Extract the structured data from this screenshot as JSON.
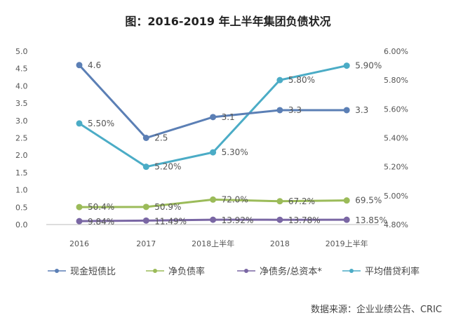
{
  "chart_data": {
    "type": "line",
    "title": "图：2016-2019 年上半年集团负债状况",
    "categories": [
      "2016",
      "2017",
      "2018上半年",
      "2018",
      "2019上半年"
    ],
    "left_axis": {
      "range": [
        0,
        5
      ],
      "ticks": [
        "0.0",
        "0.5",
        "1.0",
        "1.5",
        "2.0",
        "2.5",
        "3.0",
        "3.5",
        "4.0",
        "4.5",
        "5.0"
      ]
    },
    "right_axis": {
      "range": [
        4.8,
        6.0
      ],
      "unit": "%",
      "ticks": [
        "4.80%",
        "5.00%",
        "5.20%",
        "5.40%",
        "5.60%",
        "5.80%",
        "6.00%"
      ]
    },
    "grid": false,
    "legend_position": "bottom",
    "series": [
      {
        "name": "现金短债比",
        "axis": "left",
        "scale": 1,
        "color": "#5b7fb5",
        "values": [
          4.6,
          2.5,
          3.1,
          3.3,
          3.3
        ],
        "labels": [
          "4.6",
          "2.5",
          "3.1",
          "3.3",
          "3.3"
        ]
      },
      {
        "name": "净负债率",
        "axis": "left",
        "scale": 0.01,
        "color": "#9bbb59",
        "values": [
          50.4,
          50.9,
          72.0,
          67.2,
          69.5
        ],
        "labels": [
          "50.4%",
          "50.9%",
          "72.0%",
          "67.2%",
          "69.5%"
        ]
      },
      {
        "name": "净债务/总资本*",
        "axis": "left",
        "scale": 0.01,
        "color": "#7a67a4",
        "values": [
          9.84,
          11.49,
          13.92,
          13.78,
          13.85
        ],
        "labels": [
          "9.84%",
          "11.49%",
          "13.92%",
          "13.78%",
          "13.85%"
        ]
      },
      {
        "name": "平均借贷利率",
        "axis": "right",
        "scale": 1,
        "color": "#4bacc6",
        "values": [
          5.5,
          5.2,
          5.3,
          5.8,
          5.9
        ],
        "labels": [
          "5.50%",
          "5.20%",
          "5.30%",
          "5.80%",
          "5.90%"
        ]
      }
    ],
    "source": "数据来源：企业业绩公告、CRIC"
  }
}
